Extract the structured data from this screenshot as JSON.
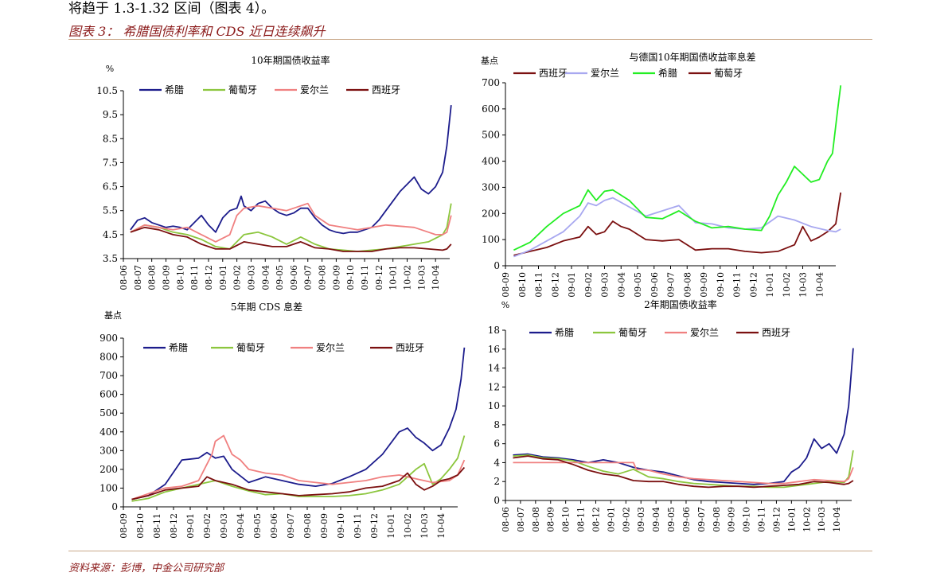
{
  "header": {
    "intro_text": "将趋于 1.3-1.32 区间（图表 4）。",
    "figure_title": "图表 3：  希腊国债利率和 CDS 近日连续飙升"
  },
  "footer": {
    "source": "资料来源：彭博，中金公司研究部"
  },
  "colors": {
    "greece": "#1c1c8c",
    "portugal": "#8cc63e",
    "ireland": "#f08080",
    "spain": "#7b1010",
    "greece_green": "#22ee22",
    "ireland_lavender": "#a8a8f0"
  },
  "chart_data": [
    {
      "id": "c1",
      "type": "line",
      "title": "10年期国债收益率",
      "unit_label": "%",
      "ylim": [
        3.5,
        10.5
      ],
      "yticks": [
        3.5,
        4.5,
        5.5,
        6.5,
        7.5,
        8.5,
        9.5,
        10.5
      ],
      "xticks": [
        "08-06",
        "08-07",
        "08-08",
        "08-09",
        "08-10",
        "08-11",
        "08-12",
        "09-01",
        "09-02",
        "09-03",
        "09-04",
        "09-05",
        "09-06",
        "09-07",
        "09-08",
        "09-09",
        "09-10",
        "09-11",
        "09-12",
        "10-01",
        "10-02",
        "10-03",
        "10-04"
      ],
      "series": [
        {
          "name": "希腊",
          "color": "#1c1c8c",
          "x": [
            0,
            0.5,
            1,
            1.5,
            2,
            2.5,
            3,
            3.5,
            4,
            4.5,
            5,
            5.5,
            6,
            6.5,
            7,
            7.5,
            7.8,
            8,
            8.5,
            9,
            9.5,
            10,
            10.5,
            11,
            11.5,
            12,
            12.5,
            13,
            13.5,
            14,
            14.5,
            15,
            15.5,
            16,
            16.5,
            17,
            17.5,
            18,
            18.5,
            19,
            19.5,
            20,
            20.5,
            21,
            21.5,
            22,
            22.3,
            22.6
          ],
          "y": [
            4.7,
            5.1,
            5.2,
            5.0,
            4.9,
            4.8,
            4.85,
            4.8,
            4.7,
            5.0,
            5.3,
            4.9,
            4.6,
            5.2,
            5.5,
            5.6,
            6.1,
            5.7,
            5.5,
            5.8,
            5.9,
            5.6,
            5.4,
            5.3,
            5.4,
            5.6,
            5.6,
            5.2,
            4.9,
            4.7,
            4.6,
            4.55,
            4.6,
            4.6,
            4.7,
            4.8,
            5.1,
            5.5,
            5.9,
            6.3,
            6.6,
            6.9,
            6.4,
            6.2,
            6.5,
            7.1,
            8.2,
            9.9
          ]
        },
        {
          "name": "葡萄牙",
          "color": "#8cc63e",
          "x": [
            0,
            1,
            2,
            3,
            4,
            5,
            6,
            7,
            7.5,
            8,
            9,
            10,
            11,
            12,
            13,
            14,
            15,
            16,
            17,
            18,
            19,
            20,
            21,
            22,
            22.3,
            22.6
          ],
          "y": [
            4.6,
            4.9,
            4.8,
            4.6,
            4.5,
            4.3,
            4.0,
            3.9,
            4.2,
            4.5,
            4.6,
            4.4,
            4.1,
            4.4,
            4.1,
            3.9,
            3.85,
            3.8,
            3.85,
            3.9,
            4.0,
            4.1,
            4.2,
            4.5,
            4.8,
            5.8
          ]
        },
        {
          "name": "爱尔兰",
          "color": "#f08080",
          "x": [
            0,
            1,
            2,
            3,
            4,
            5,
            6,
            7,
            7.5,
            8,
            9,
            10,
            11,
            12,
            12.5,
            13,
            14,
            15,
            16,
            17,
            18,
            19,
            20,
            21,
            21.5,
            22,
            22.3,
            22.6
          ],
          "y": [
            4.6,
            4.9,
            4.8,
            4.7,
            4.8,
            4.5,
            4.2,
            4.5,
            5.3,
            5.6,
            5.7,
            5.6,
            5.5,
            5.7,
            5.8,
            5.3,
            4.9,
            4.8,
            4.7,
            4.8,
            4.9,
            4.85,
            4.8,
            4.6,
            4.5,
            4.5,
            4.6,
            5.3
          ]
        },
        {
          "name": "西班牙",
          "color": "#7b1010",
          "x": [
            0,
            1,
            2,
            3,
            4,
            5,
            6,
            7,
            8,
            9,
            10,
            11,
            12,
            13,
            14,
            15,
            16,
            17,
            18,
            19,
            20,
            21,
            22,
            22.3,
            22.6
          ],
          "y": [
            4.6,
            4.8,
            4.7,
            4.5,
            4.4,
            4.1,
            3.9,
            3.9,
            4.2,
            4.1,
            4.0,
            4.0,
            4.2,
            3.95,
            3.9,
            3.8,
            3.8,
            3.8,
            3.9,
            3.95,
            3.95,
            3.9,
            3.85,
            3.9,
            4.1
          ]
        }
      ],
      "legend": "top"
    },
    {
      "id": "c2",
      "type": "line",
      "title": "与德国10年期国债收益率息差",
      "unit_label": "基点",
      "ylim": [
        0,
        700
      ],
      "yticks": [
        0,
        100,
        200,
        300,
        400,
        500,
        600,
        700
      ],
      "xticks": [
        "08-09",
        "08-10",
        "08-11",
        "08-12",
        "09-01",
        "09-02",
        "09-03",
        "09-04",
        "09-05",
        "09-06",
        "09-07",
        "09-08",
        "09-09",
        "09-10",
        "09-11",
        "09-12",
        "10-01",
        "10-02",
        "10-03",
        "10-04"
      ],
      "series": [
        {
          "name": "西班牙",
          "color": "#7b1010",
          "x": [
            0,
            1,
            2,
            3,
            4,
            4.5,
            5,
            5.5,
            6,
            6.5,
            7,
            8,
            9,
            10,
            11,
            12,
            13,
            14,
            15,
            16,
            17,
            17.5,
            18,
            18.5,
            19,
            19.5,
            19.8
          ],
          "y": [
            40,
            55,
            70,
            95,
            110,
            150,
            120,
            130,
            170,
            150,
            140,
            100,
            95,
            100,
            60,
            65,
            65,
            55,
            50,
            55,
            80,
            150,
            95,
            110,
            130,
            160,
            280
          ]
        },
        {
          "name": "爱尔兰",
          "color": "#a8a8f0",
          "x": [
            0,
            1,
            2,
            3,
            4,
            4.5,
            5,
            5.5,
            6,
            7,
            8,
            9,
            10,
            11,
            12,
            13,
            14,
            15,
            16,
            17,
            18,
            19,
            19.5,
            19.8
          ],
          "y": [
            35,
            60,
            95,
            130,
            190,
            240,
            230,
            250,
            260,
            225,
            190,
            210,
            230,
            165,
            160,
            145,
            140,
            145,
            190,
            175,
            150,
            135,
            130,
            140
          ]
        },
        {
          "name": "希腊",
          "color": "#22ee22",
          "x": [
            0,
            1,
            2,
            3,
            4,
            4.5,
            5,
            5.5,
            6,
            7,
            8,
            9,
            10,
            11,
            12,
            13,
            14,
            15,
            15.5,
            16,
            16.5,
            17,
            17.5,
            18,
            18.5,
            19,
            19.3,
            19.6,
            19.8
          ],
          "y": [
            60,
            90,
            150,
            200,
            230,
            290,
            250,
            285,
            290,
            250,
            185,
            180,
            210,
            170,
            145,
            150,
            140,
            135,
            190,
            270,
            320,
            380,
            350,
            320,
            330,
            400,
            430,
            590,
            690
          ]
        },
        {
          "name": "葡萄牙",
          "color": "#7b1010",
          "x": [],
          "y": []
        }
      ],
      "legend": "top"
    },
    {
      "id": "c3",
      "type": "line",
      "title": "5年期 CDS 息差",
      "unit_label": "基点",
      "ylim": [
        0,
        900
      ],
      "yticks": [
        0,
        100,
        200,
        300,
        400,
        500,
        600,
        700,
        800,
        900
      ],
      "xticks": [
        "08-09",
        "08-10",
        "08-11",
        "08-12",
        "09-01",
        "09-02",
        "09-03",
        "09-04",
        "09-05",
        "09-06",
        "09-07",
        "09-08",
        "09-09",
        "09-10",
        "09-11",
        "09-12",
        "10-01",
        "10-02",
        "10-03",
        "10-04"
      ],
      "series": [
        {
          "name": "希腊",
          "color": "#1c1c8c",
          "x": [
            0,
            1,
            2,
            3,
            4,
            4.5,
            5,
            5.5,
            6,
            7,
            8,
            9,
            10,
            11,
            12,
            13,
            14,
            15,
            16,
            16.5,
            17,
            17.5,
            18,
            18.5,
            19,
            19.4,
            19.7,
            19.9
          ],
          "y": [
            40,
            60,
            120,
            250,
            260,
            290,
            260,
            270,
            200,
            130,
            160,
            140,
            120,
            110,
            125,
            160,
            200,
            280,
            400,
            420,
            370,
            340,
            300,
            330,
            420,
            520,
            680,
            850
          ]
        },
        {
          "name": "葡萄牙",
          "color": "#8cc63e",
          "x": [
            0,
            1,
            2,
            3,
            4,
            5,
            6,
            7,
            8,
            9,
            10,
            11,
            12,
            13,
            14,
            15,
            16,
            17,
            17.5,
            18,
            18.5,
            19,
            19.5,
            19.9
          ],
          "y": [
            30,
            45,
            80,
            100,
            120,
            140,
            110,
            85,
            65,
            70,
            55,
            55,
            55,
            60,
            70,
            90,
            120,
            200,
            230,
            120,
            150,
            200,
            260,
            380
          ]
        },
        {
          "name": "爱尔兰",
          "color": "#f08080",
          "x": [
            0,
            1,
            2,
            3,
            4,
            4.8,
            5,
            5.5,
            6,
            6.5,
            7,
            8,
            9,
            10,
            11,
            12,
            13,
            14,
            15,
            16,
            17,
            18,
            19,
            19.5,
            19.9
          ],
          "y": [
            40,
            70,
            100,
            110,
            140,
            280,
            350,
            380,
            280,
            250,
            200,
            180,
            170,
            140,
            130,
            120,
            130,
            140,
            160,
            170,
            150,
            130,
            140,
            170,
            250
          ]
        },
        {
          "name": "西班牙",
          "color": "#7b1010",
          "x": [
            0,
            1,
            2,
            3,
            4,
            4.5,
            5,
            5.5,
            6,
            7,
            8,
            9,
            10,
            11,
            12,
            13,
            14,
            15,
            16,
            16.5,
            17,
            17.5,
            18,
            18.5,
            19,
            19.5,
            19.9
          ],
          "y": [
            40,
            60,
            90,
            100,
            110,
            160,
            140,
            130,
            120,
            90,
            80,
            70,
            60,
            65,
            70,
            80,
            100,
            110,
            140,
            180,
            120,
            90,
            110,
            140,
            150,
            170,
            210
          ]
        }
      ],
      "legend": "top"
    },
    {
      "id": "c4",
      "type": "line",
      "title": "2年期国债收益率",
      "unit_label": "%",
      "ylim": [
        0,
        18
      ],
      "yticks": [
        0,
        2,
        4,
        6,
        8,
        10,
        12,
        14,
        16,
        18
      ],
      "xticks": [
        "08-06",
        "08-07",
        "08-08",
        "08-09",
        "08-10",
        "08-11",
        "08-12",
        "09-01",
        "09-02",
        "09-03",
        "09-04",
        "09-05",
        "09-06",
        "09-07",
        "09-08",
        "09-09",
        "09-10",
        "09-11",
        "09-12",
        "10-01",
        "10-02",
        "10-03",
        "10-04"
      ],
      "series": [
        {
          "name": "希腊",
          "color": "#1c1c8c",
          "x": [
            0,
            1,
            2,
            3,
            4,
            5,
            6,
            7,
            8,
            9,
            10,
            11,
            12,
            13,
            14,
            15,
            16,
            17,
            18,
            18.5,
            19,
            19.5,
            20,
            20.5,
            21,
            21.5,
            22,
            22.3,
            22.6
          ],
          "y": [
            4.8,
            4.9,
            4.6,
            4.5,
            4.3,
            4.0,
            4.3,
            4.0,
            3.5,
            3.2,
            3.0,
            2.6,
            2.2,
            2.0,
            1.9,
            1.8,
            1.7,
            1.8,
            2.0,
            3.0,
            3.5,
            4.5,
            6.5,
            5.5,
            6.0,
            5.0,
            7.0,
            10.0,
            16.1
          ]
        },
        {
          "name": "葡萄牙",
          "color": "#8cc63e",
          "x": [
            0,
            1,
            2,
            3,
            4,
            5,
            6,
            7,
            8,
            9,
            10,
            11,
            12,
            13,
            14,
            15,
            16,
            17,
            18,
            19,
            20,
            21,
            22,
            22.3,
            22.6
          ],
          "y": [
            4.7,
            4.8,
            4.5,
            4.4,
            4.2,
            3.6,
            3.1,
            2.8,
            3.3,
            2.5,
            2.3,
            2.0,
            1.8,
            1.7,
            1.6,
            1.5,
            1.5,
            1.4,
            1.4,
            1.6,
            1.8,
            2.0,
            1.9,
            2.5,
            5.3
          ]
        },
        {
          "name": "爱尔兰",
          "color": "#f08080",
          "x": [
            0,
            2,
            4,
            6,
            8,
            8.2,
            9,
            10,
            11,
            12,
            13,
            14,
            15,
            16,
            17,
            18,
            19,
            20,
            21,
            22,
            22.3,
            22.6
          ],
          "y": [
            4.0,
            4.0,
            4.0,
            4.0,
            4.0,
            3.3,
            3.2,
            2.8,
            2.5,
            2.3,
            2.2,
            2.1,
            2.0,
            1.9,
            1.8,
            1.8,
            2.0,
            2.2,
            2.1,
            2.0,
            2.3,
            3.5
          ]
        },
        {
          "name": "西班牙",
          "color": "#7b1010",
          "x": [
            0,
            1,
            2,
            3,
            4,
            5,
            6,
            7,
            8,
            9,
            10,
            11,
            12,
            13,
            14,
            15,
            16,
            17,
            18,
            19,
            20,
            21,
            22,
            22.3,
            22.6
          ],
          "y": [
            4.5,
            4.7,
            4.4,
            4.3,
            3.8,
            3.2,
            2.8,
            2.6,
            2.1,
            2.0,
            2.0,
            1.7,
            1.5,
            1.4,
            1.5,
            1.5,
            1.4,
            1.5,
            1.6,
            1.7,
            2.0,
            1.9,
            1.7,
            1.8,
            2.1
          ]
        }
      ],
      "legend": "top"
    }
  ]
}
